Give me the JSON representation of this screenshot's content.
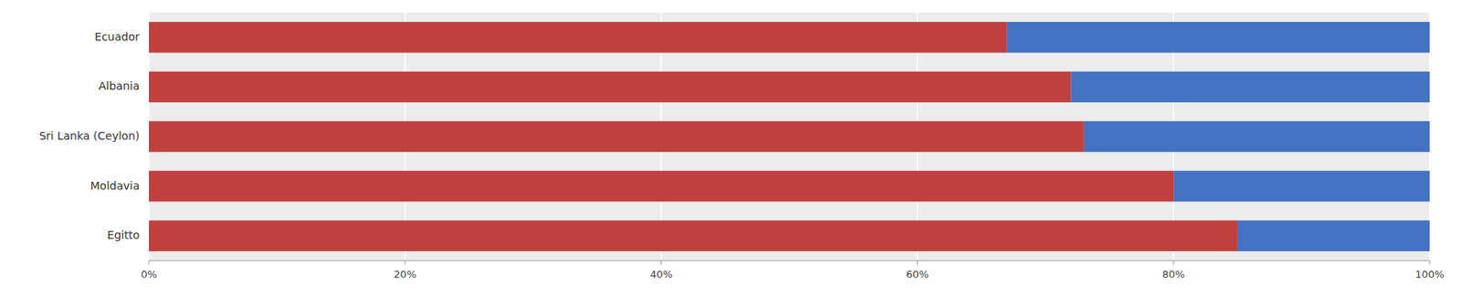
{
  "chart_data": {
    "type": "bar",
    "orientation": "horizontal",
    "stacked": true,
    "categories": [
      "Egitto",
      "Moldavia",
      "Sri Lanka (Ceylon)",
      "Albania",
      "Ecuador"
    ],
    "series": [
      {
        "color": "#C04040",
        "values": [
          85,
          80,
          73,
          72,
          67
        ]
      },
      {
        "color": "#4472C4",
        "values": [
          15,
          20,
          27,
          28,
          33
        ]
      }
    ],
    "xlim": [
      0,
      100
    ],
    "xticks": [
      {
        "value": 0,
        "label": "0%"
      },
      {
        "value": 20,
        "label": "20%"
      },
      {
        "value": 40,
        "label": "40%"
      },
      {
        "value": 60,
        "label": "60%"
      },
      {
        "value": 80,
        "label": "80%"
      },
      {
        "value": 100,
        "label": "100%"
      }
    ],
    "grid": true
  }
}
